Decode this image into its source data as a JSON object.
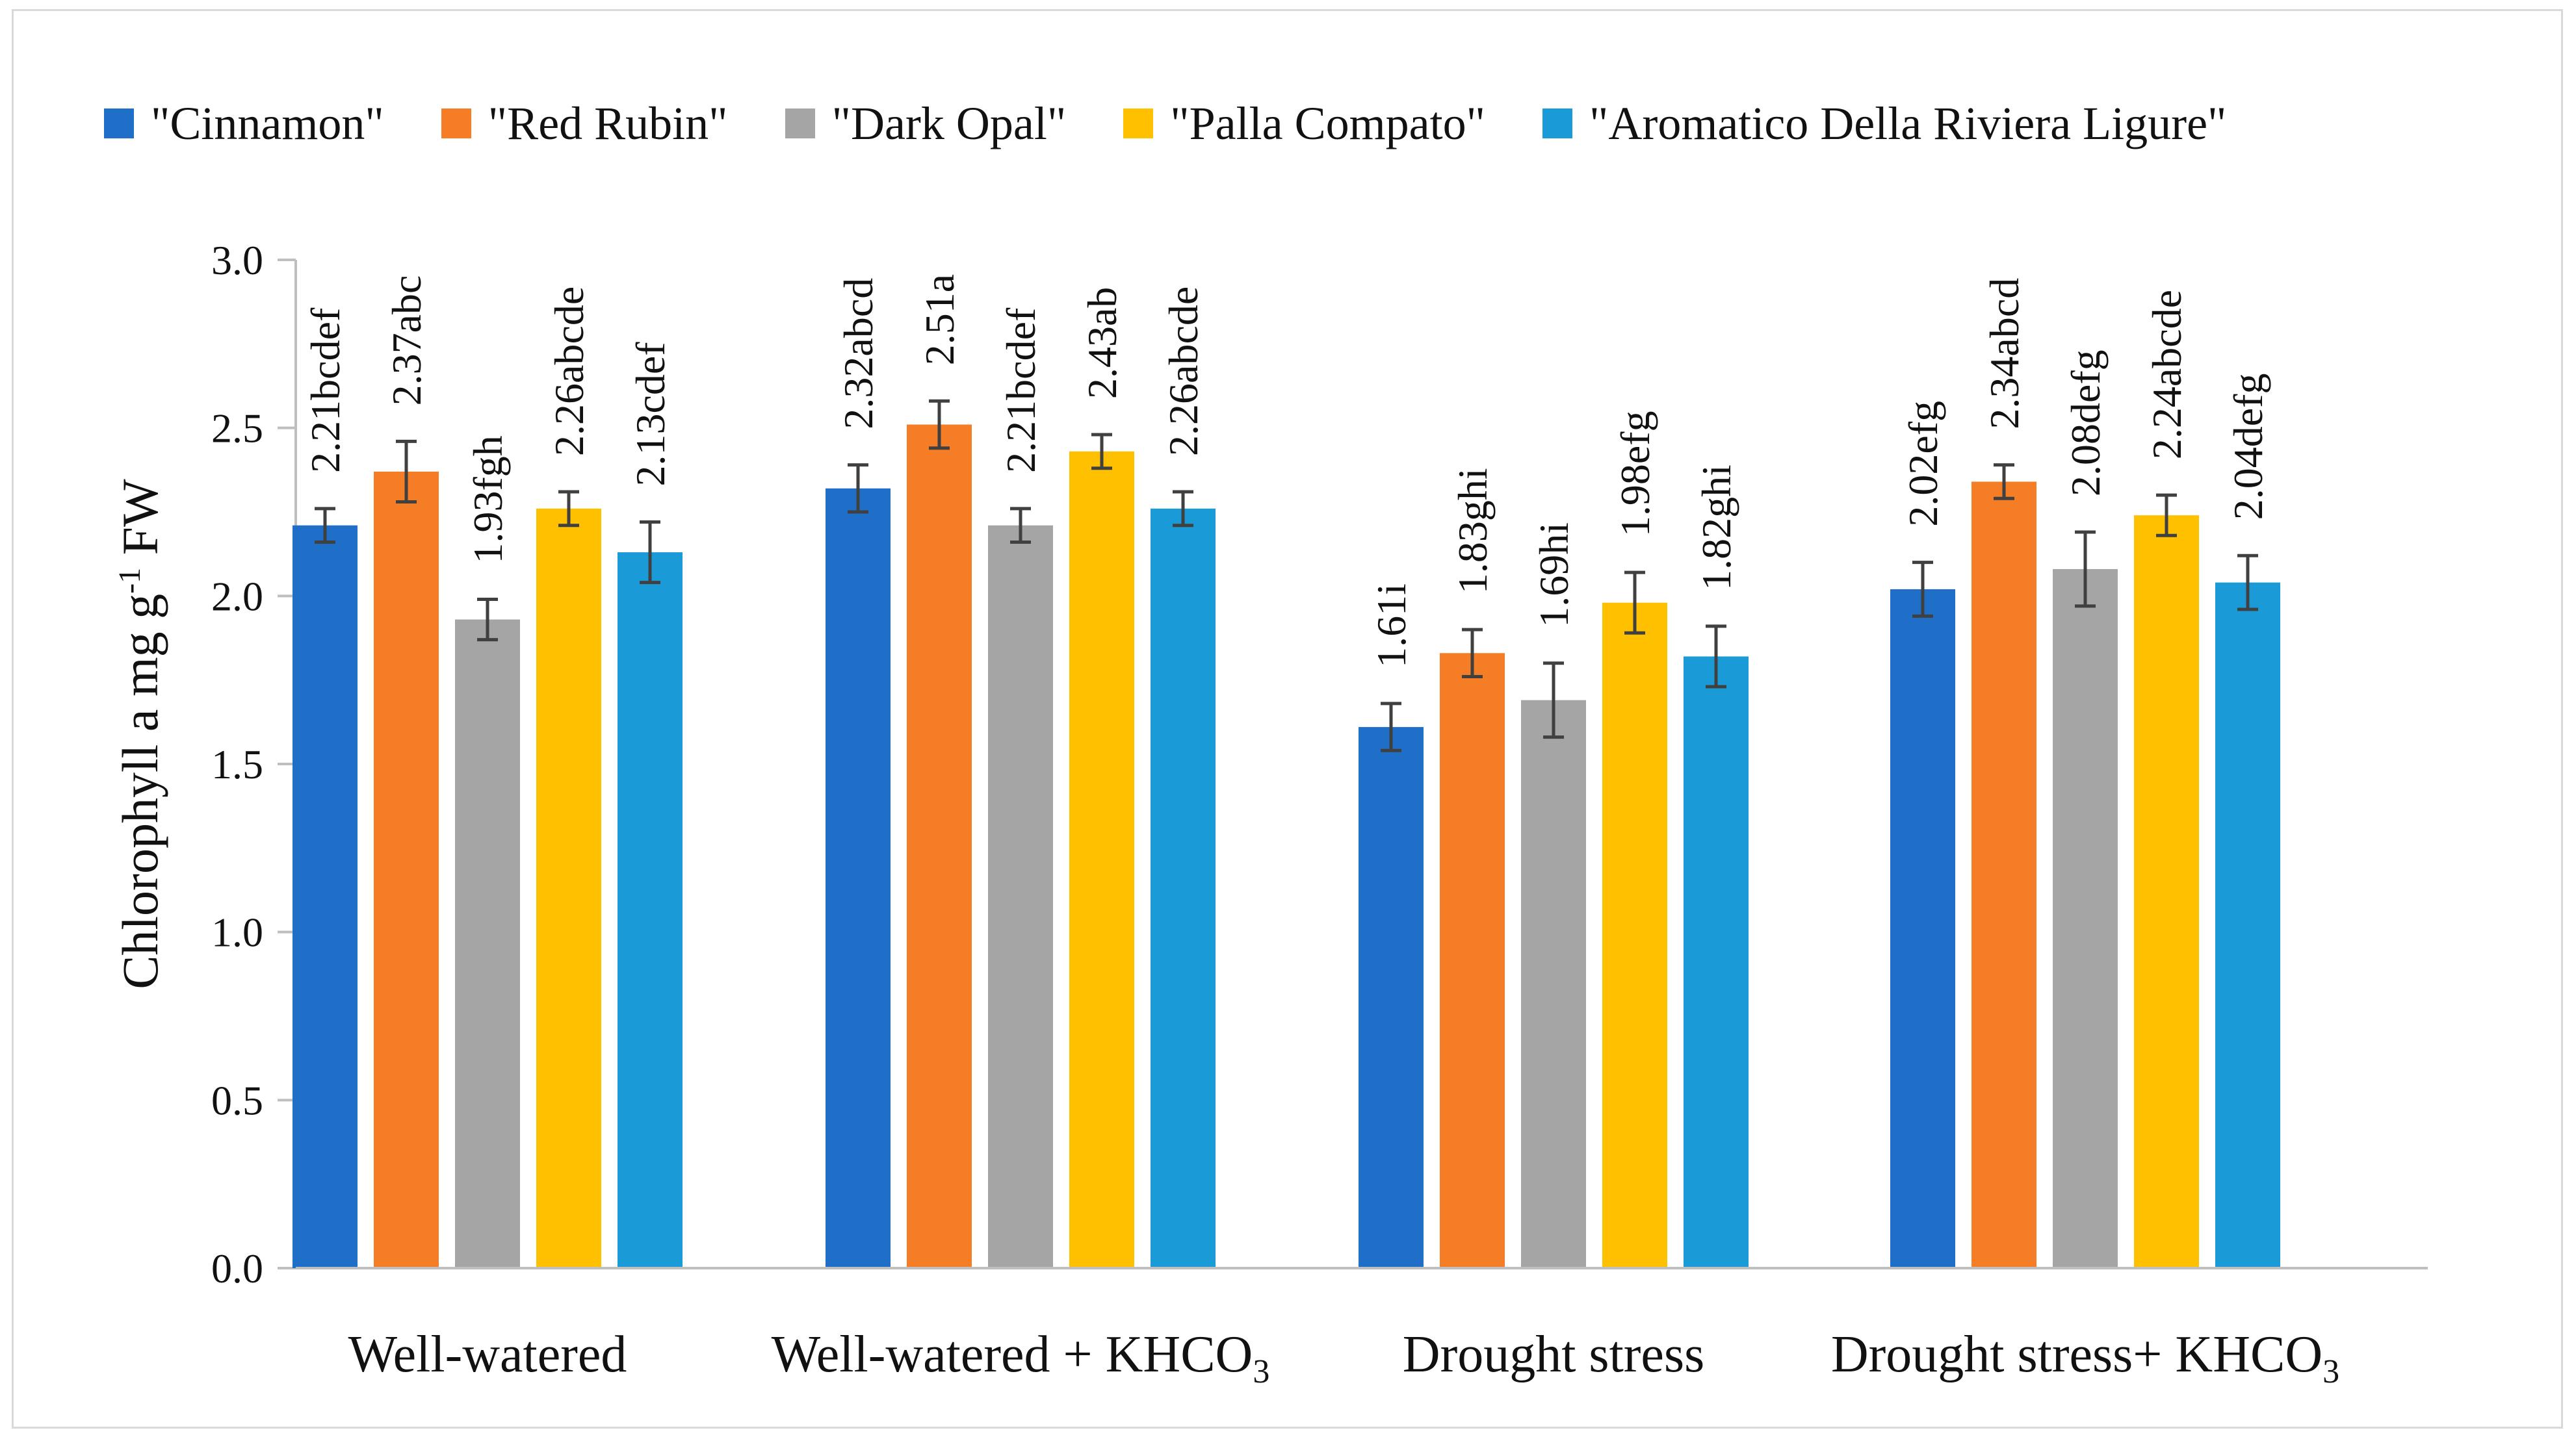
{
  "chart_data": {
    "type": "bar",
    "title": "",
    "xlabel": "",
    "ylabel": "Chlorophyll a mg g-1 FW",
    "ylabel_parts": {
      "main": "Chlorophyll a mg g",
      "sup": "-1",
      "tail": " FW"
    },
    "ylim": [
      0,
      3.0
    ],
    "yticks": [
      "0.0",
      "0.5",
      "1.0",
      "1.5",
      "2.0",
      "2.5",
      "3.0"
    ],
    "categories": [
      "Well-watered",
      "Well-watered + KHCO3",
      "Drought stress",
      "Drought stress+ KHCO3"
    ],
    "category_parts": [
      {
        "main": "Well-watered",
        "sub": "",
        "tail": ""
      },
      {
        "main": "Well-watered + KHCO",
        "sub": "3",
        "tail": ""
      },
      {
        "main": "Drought stress",
        "sub": "",
        "tail": ""
      },
      {
        "main": "Drought stress+ KHCO",
        "sub": "3",
        "tail": ""
      }
    ],
    "legend_position": "top",
    "series": [
      {
        "name": "\"Cinnamon\"",
        "color": "#1f6fc8",
        "values": [
          2.21,
          2.32,
          1.61,
          2.02
        ],
        "errors": [
          0.05,
          0.07,
          0.07,
          0.08
        ],
        "labels": [
          "2.21bcdef",
          "2.32abcd",
          "1.61i",
          "2.02efg"
        ]
      },
      {
        "name": "\"Red Rubin\"",
        "color": "#f47d26",
        "values": [
          2.37,
          2.51,
          1.83,
          2.34
        ],
        "errors": [
          0.09,
          0.07,
          0.07,
          0.05
        ],
        "labels": [
          "2.37abc",
          "2.51a",
          "1.83ghi",
          "2.34abcd"
        ]
      },
      {
        "name": "\"Dark Opal\"",
        "color": "#a5a5a5",
        "values": [
          1.93,
          2.21,
          1.69,
          2.08
        ],
        "errors": [
          0.06,
          0.05,
          0.11,
          0.11
        ],
        "labels": [
          "1.93fgh",
          "2.21bcdef",
          "1.69hi",
          "2.08defg"
        ]
      },
      {
        "name": "\"Palla Compato\"",
        "color": "#ffc000",
        "values": [
          2.26,
          2.43,
          1.98,
          2.24
        ],
        "errors": [
          0.05,
          0.05,
          0.09,
          0.06
        ],
        "labels": [
          "2.26abcde",
          "2.43ab",
          "1.98efg",
          "2.24abcde"
        ]
      },
      {
        "name": "\"Aromatico Della Riviera Ligure\"",
        "color": "#1b9ad8",
        "values": [
          2.13,
          2.26,
          1.82,
          2.04
        ],
        "errors": [
          0.09,
          0.05,
          0.09,
          0.08
        ],
        "labels": [
          "2.13cdef",
          "2.26abcde",
          "1.82ghi",
          "2.04defg"
        ]
      }
    ],
    "colors": {
      "axis": "#bfbfbf",
      "text": "#111111",
      "error_bar": "#404040"
    }
  }
}
